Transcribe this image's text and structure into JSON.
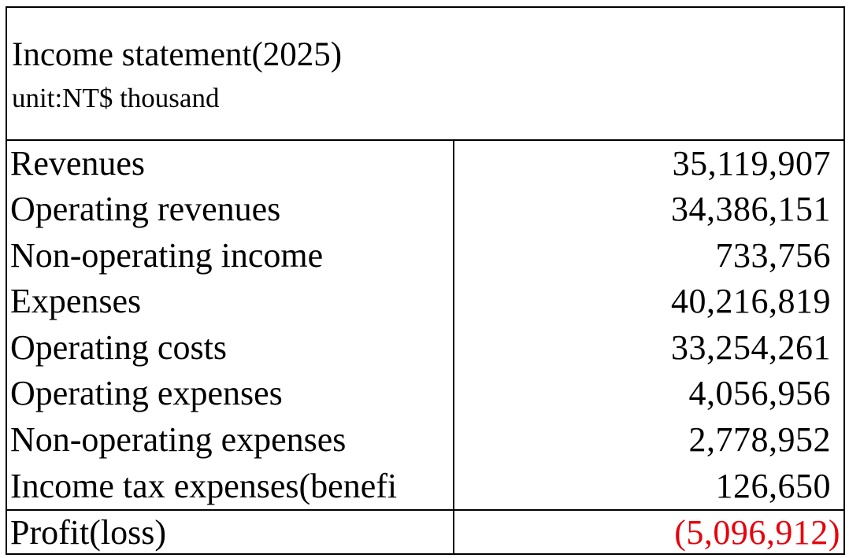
{
  "header": {
    "title": "Income statement(2025)",
    "unit": "unit:NT$ thousand"
  },
  "rows": [
    {
      "label": "Revenues",
      "value": "35,119,907"
    },
    {
      "label": "Operating revenues",
      "value": "34,386,151"
    },
    {
      "label": "Non-operating income",
      "value": "733,756"
    },
    {
      "label": "Expenses",
      "value": "40,216,819"
    },
    {
      "label": "Operating costs",
      "value": "33,254,261"
    },
    {
      "label": "Operating expenses",
      "value": "4,056,956"
    },
    {
      "label": "Non-operating expenses",
      "value": "2,778,952"
    },
    {
      "label": "Income tax expenses(benefi",
      "value": "126,650"
    }
  ],
  "total": {
    "label": "Profit(loss)",
    "value": "(5,096,912)"
  },
  "colors": {
    "negative": "#e8000b",
    "border": "#000000",
    "background": "#ffffff"
  }
}
